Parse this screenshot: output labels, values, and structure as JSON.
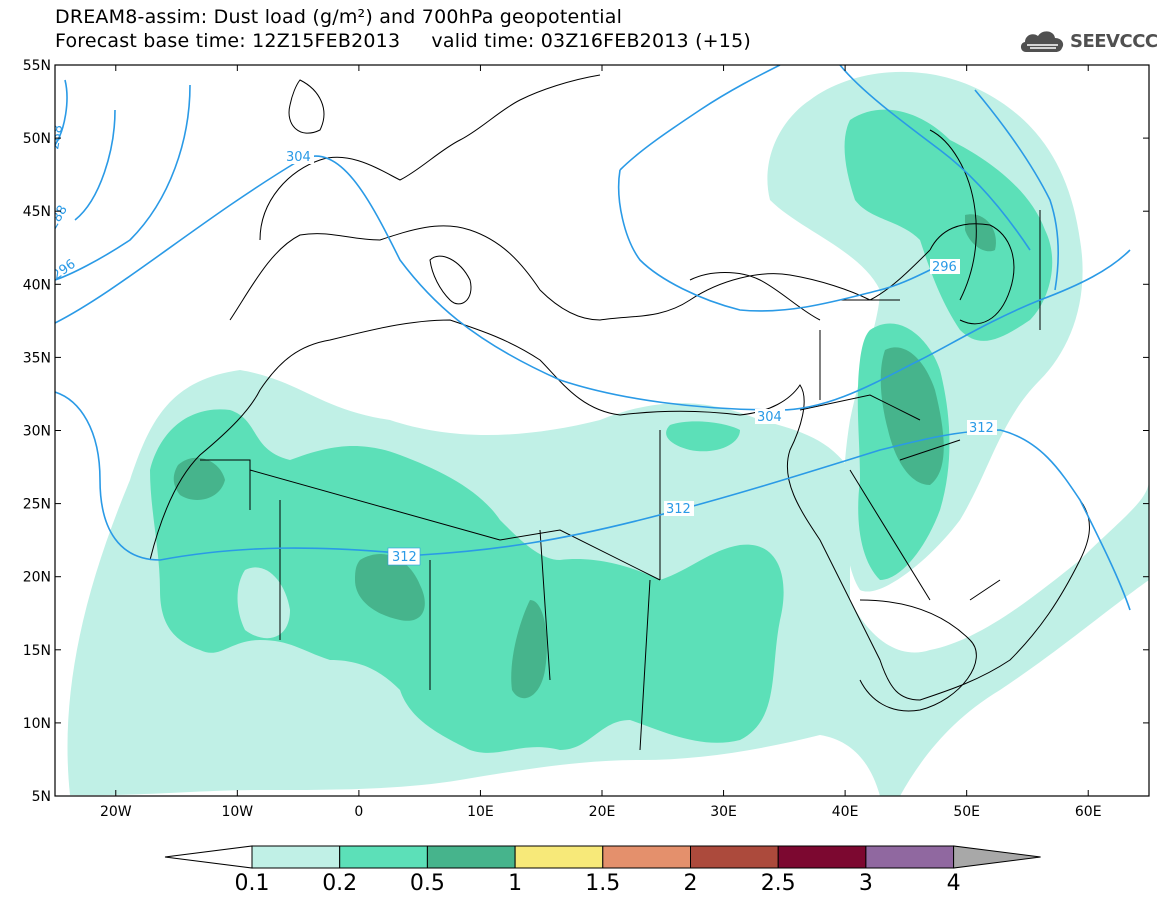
{
  "title": {
    "line1": "DREAM8-assim: Dust load (g/m²) and 700hPa geopotential",
    "line2": "Forecast base time: 12Z15FEB2013     valid time: 03Z16FEB2013 (+15)"
  },
  "logo": {
    "text": "SEEVCCC",
    "icon": "cloud-icon"
  },
  "axes": {
    "lat_labels": [
      "55N",
      "50N",
      "45N",
      "40N",
      "35N",
      "30N",
      "25N",
      "20N",
      "15N",
      "10N",
      "5N"
    ],
    "lon_labels": [
      "20W",
      "10W",
      "0",
      "10E",
      "20E",
      "30E",
      "40E",
      "50E",
      "60E"
    ]
  },
  "contour_labels": [
    "304",
    "296",
    "304",
    "312",
    "312",
    "312",
    "288",
    "288",
    "296"
  ],
  "colorbar": {
    "levels": [
      "0.1",
      "0.2",
      "0.5",
      "1",
      "1.5",
      "2",
      "2.5",
      "3",
      "4"
    ],
    "colors": [
      "#ffffff",
      "#c0f0e6",
      "#5ce0b8",
      "#46b48c",
      "#f7e979",
      "#e4906c",
      "#ac4a3c",
      "#7c0830",
      "#9068a0",
      "#a8a8a8"
    ]
  },
  "fill_colors": {
    "light": "#c0f0e6",
    "medium": "#5ce0b8",
    "dark": "#46b48c",
    "contour_line": "#2a9ae6"
  }
}
